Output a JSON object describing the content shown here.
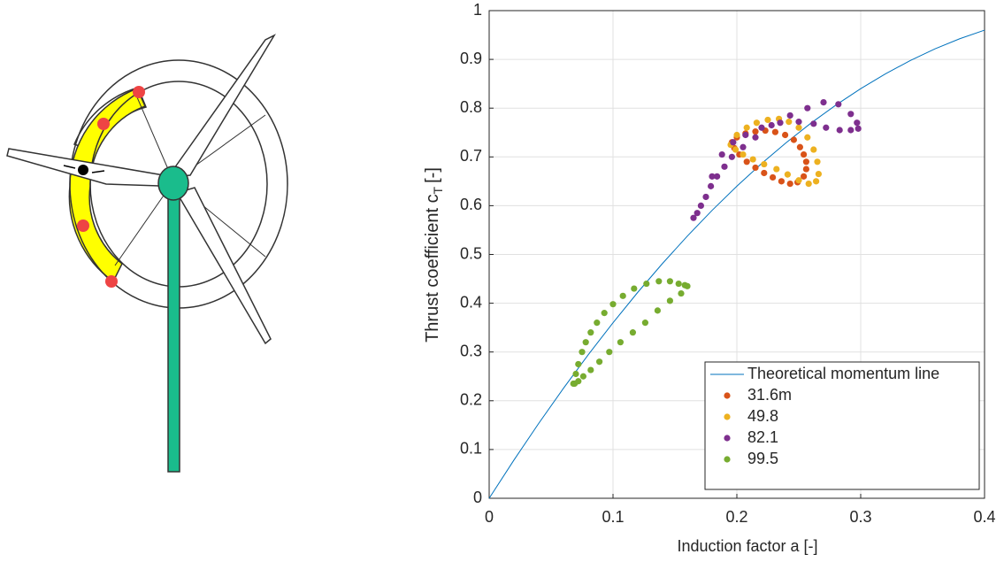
{
  "chart_data": {
    "type": "scatter",
    "xlabel": "Induction factor a [-]",
    "ylabel": {
      "text": "Thrust coefficient c",
      "subscript": "T",
      "suffix": "[-]"
    },
    "xlim": [
      0,
      0.4
    ],
    "ylim": [
      0,
      1
    ],
    "xticks": [
      0,
      0.1,
      0.2,
      0.3,
      0.4
    ],
    "yticks": [
      0,
      0.1,
      0.2,
      0.3,
      0.4,
      0.5,
      0.6,
      0.7,
      0.8,
      0.9,
      1
    ],
    "grid": true,
    "legend": "lower right",
    "series": [
      {
        "name": "Theoretical momentum line",
        "color": "#0072bd",
        "style": "line",
        "x": [
          0,
          0.02,
          0.04,
          0.06,
          0.08,
          0.1,
          0.12,
          0.14,
          0.16,
          0.18,
          0.2,
          0.22,
          0.24,
          0.26,
          0.28,
          0.3,
          0.32,
          0.34,
          0.36,
          0.38,
          0.4
        ],
        "values": [
          0,
          0.0784,
          0.1536,
          0.2256,
          0.2944,
          0.36,
          0.4224,
          0.4816,
          0.5376,
          0.5904,
          0.64,
          0.6864,
          0.7296,
          0.7696,
          0.8064,
          0.84,
          0.8704,
          0.8976,
          0.9216,
          0.9424,
          0.96
        ]
      },
      {
        "name": "31.6m",
        "color": "#d95319",
        "style": "markers",
        "x": [
          0.196,
          0.2,
          0.207,
          0.215,
          0.223,
          0.231,
          0.239,
          0.246,
          0.251,
          0.254,
          0.256,
          0.256,
          0.254,
          0.249,
          0.243,
          0.236,
          0.229,
          0.222,
          0.215,
          0.208,
          0.202,
          0.198
        ],
        "values": [
          0.73,
          0.74,
          0.748,
          0.752,
          0.754,
          0.751,
          0.745,
          0.735,
          0.72,
          0.705,
          0.69,
          0.675,
          0.66,
          0.648,
          0.645,
          0.65,
          0.658,
          0.667,
          0.678,
          0.69,
          0.705,
          0.718
        ]
      },
      {
        "name": "49.8",
        "color": "#edb120",
        "style": "markers",
        "x": [
          0.195,
          0.2,
          0.208,
          0.216,
          0.225,
          0.234,
          0.242,
          0.25,
          0.257,
          0.262,
          0.265,
          0.266,
          0.264,
          0.258,
          0.25,
          0.241,
          0.232,
          0.222,
          0.213,
          0.205,
          0.199
        ],
        "values": [
          0.725,
          0.745,
          0.76,
          0.77,
          0.776,
          0.778,
          0.772,
          0.76,
          0.74,
          0.715,
          0.69,
          0.665,
          0.65,
          0.645,
          0.652,
          0.664,
          0.675,
          0.685,
          0.695,
          0.705,
          0.715
        ]
      },
      {
        "name": "82.1",
        "color": "#7e2f8e",
        "style": "markers",
        "x": [
          0.165,
          0.168,
          0.171,
          0.175,
          0.179,
          0.184,
          0.19,
          0.196,
          0.205,
          0.215,
          0.228,
          0.243,
          0.257,
          0.27,
          0.282,
          0.292,
          0.297,
          0.298,
          0.292,
          0.283,
          0.272,
          0.262,
          0.25,
          0.235,
          0.22,
          0.207,
          0.197,
          0.188,
          0.18
        ],
        "values": [
          0.575,
          0.585,
          0.6,
          0.618,
          0.64,
          0.66,
          0.68,
          0.7,
          0.72,
          0.74,
          0.765,
          0.785,
          0.8,
          0.812,
          0.808,
          0.788,
          0.77,
          0.758,
          0.755,
          0.755,
          0.76,
          0.768,
          0.772,
          0.77,
          0.76,
          0.745,
          0.73,
          0.705,
          0.66
        ]
      },
      {
        "name": "99.5",
        "color": "#77ac30",
        "style": "markers",
        "x": [
          0.068,
          0.07,
          0.072,
          0.075,
          0.078,
          0.082,
          0.087,
          0.093,
          0.1,
          0.108,
          0.117,
          0.127,
          0.137,
          0.146,
          0.153,
          0.158,
          0.16,
          0.155,
          0.146,
          0.136,
          0.126,
          0.116,
          0.106,
          0.097,
          0.089,
          0.082,
          0.076,
          0.072,
          0.069
        ],
        "values": [
          0.235,
          0.255,
          0.275,
          0.3,
          0.32,
          0.34,
          0.36,
          0.38,
          0.398,
          0.415,
          0.43,
          0.44,
          0.445,
          0.445,
          0.44,
          0.437,
          0.435,
          0.42,
          0.405,
          0.385,
          0.36,
          0.34,
          0.32,
          0.3,
          0.28,
          0.263,
          0.25,
          0.24,
          0.235
        ]
      }
    ]
  }
}
